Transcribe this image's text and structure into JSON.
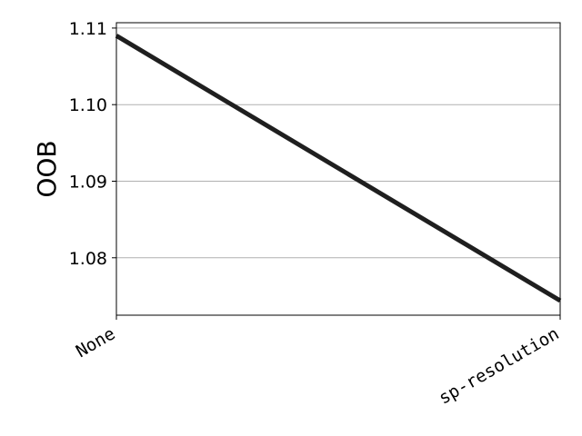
{
  "chart_data": {
    "type": "line",
    "title": "",
    "xlabel": "",
    "ylabel": "OOB",
    "categories": [
      "None",
      "sp-resolution"
    ],
    "series": [
      {
        "values": [
          1.109,
          1.0744
        ]
      }
    ],
    "ylim": [
      1.0725,
      1.1107
    ],
    "yticks": [
      1.08,
      1.09,
      1.1,
      1.11
    ],
    "ytick_labels": [
      "1.08",
      "1.09",
      "1.10",
      "1.11"
    ],
    "grid": "horizontal",
    "legend": "none",
    "line_color": "#1f1f1f",
    "grid_color": "#b0b0b0"
  }
}
